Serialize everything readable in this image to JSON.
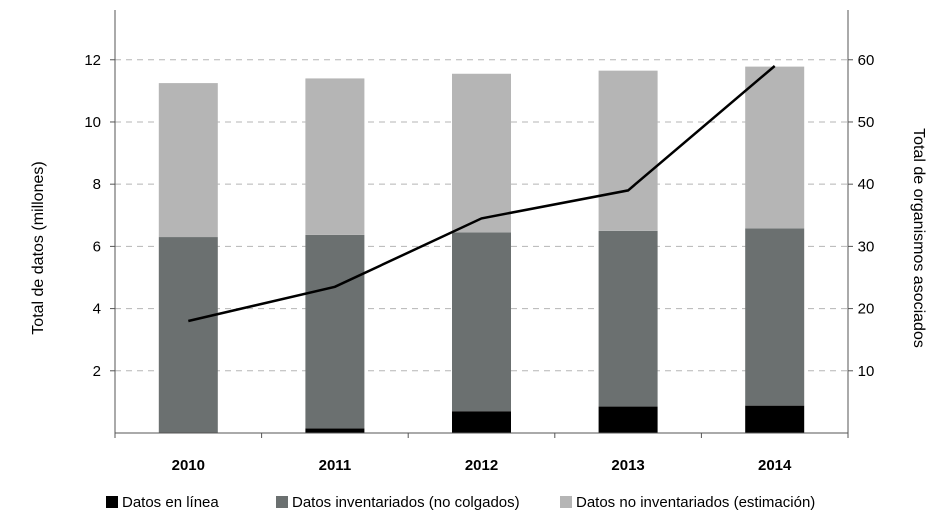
{
  "chart_data": {
    "type": "bar",
    "stacked": true,
    "categories": [
      "2010",
      "2011",
      "2012",
      "2013",
      "2014"
    ],
    "ylabel": "Total de datos (millones)",
    "y2label": "Total de organismos asociados",
    "ylim": [
      0,
      13.6
    ],
    "y2lim": [
      0,
      68
    ],
    "yticks": [
      "2",
      "4",
      "6",
      "8",
      "10",
      "12"
    ],
    "y2ticks": [
      "10",
      "20",
      "30",
      "40",
      "50",
      "60"
    ],
    "grid": true,
    "legend_position": "bottom",
    "series": [
      {
        "name": "Datos en línea",
        "color": "#000000",
        "values": [
          0,
          0.15,
          0.7,
          0.85,
          0.88
        ]
      },
      {
        "name": "Datos inventariados (no colgados)",
        "color": "#6b7070",
        "values": [
          6.3,
          6.22,
          5.75,
          5.65,
          5.7
        ]
      },
      {
        "name": "Datos no inventariados (estimación)",
        "color": "#b5b5b5",
        "values": [
          4.95,
          5.03,
          5.1,
          5.15,
          5.2
        ]
      }
    ],
    "line_series": {
      "axis": "right",
      "color": "#000000",
      "values": [
        18,
        23.5,
        34.5,
        39,
        59
      ]
    }
  }
}
